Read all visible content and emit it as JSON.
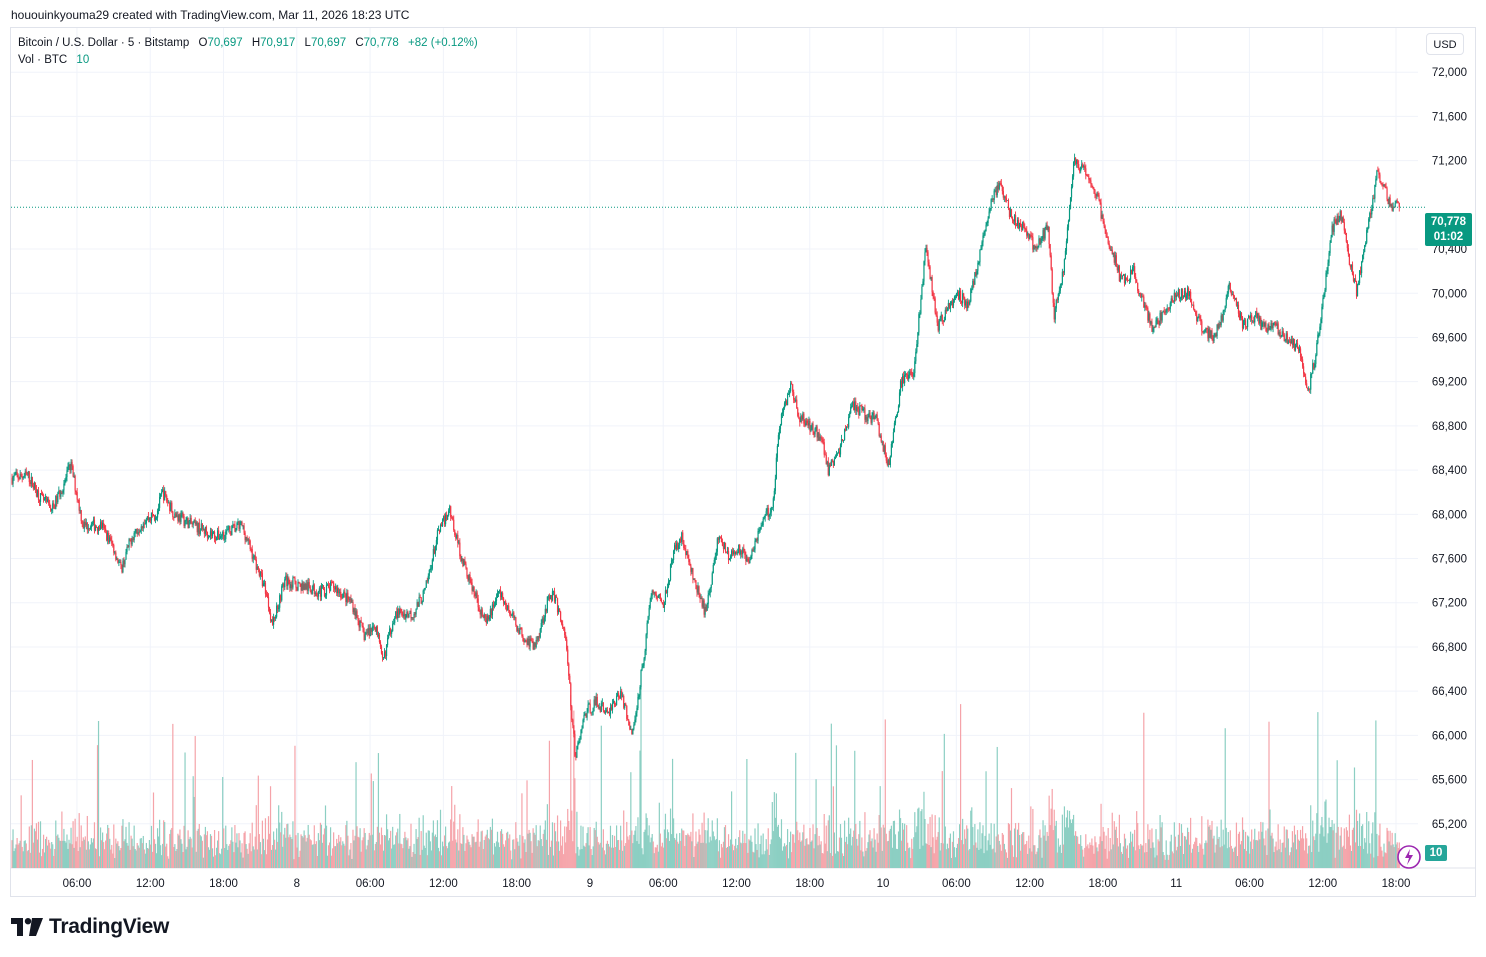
{
  "caption": "hououinkyouma29 created with TradingView.com, Mar 11, 2026 18:23 UTC",
  "legend": {
    "symbol": "Bitcoin / U.S. Dollar · 5 · Bitstamp",
    "o_label": "O",
    "o_value": "70,697",
    "h_label": "H",
    "h_value": "70,917",
    "l_label": "L",
    "l_value": "70,697",
    "c_label": "C",
    "c_value": "70,778",
    "change": "+82 (+0.12%)",
    "vol_label": "Vol · BTC",
    "vol_value": "10"
  },
  "currency": "USD",
  "last_price": {
    "price": "70,778",
    "countdown": "01:02"
  },
  "volume_badge": "10",
  "brand": "TradingView",
  "colors": {
    "up": "#089981",
    "down": "#f23645",
    "vol_up": "#8ccfc3",
    "vol_down": "#f5a3a9",
    "grid": "#f0f3fa",
    "axis_text": "#131722"
  },
  "chart_data": {
    "type": "candlestick",
    "title": "Bitcoin / U.S. Dollar · 5 · Bitstamp",
    "ylim": [
      64800,
      72400
    ],
    "y_ticks": [
      "72,000",
      "71,600",
      "71,200",
      "70,400",
      "70,000",
      "69,600",
      "69,200",
      "68,800",
      "68,400",
      "68,000",
      "67,600",
      "67,200",
      "66,800",
      "66,400",
      "66,000",
      "65,600",
      "65,200"
    ],
    "x_ticks": [
      "06:00",
      "12:00",
      "18:00",
      "8",
      "06:00",
      "12:00",
      "18:00",
      "9",
      "06:00",
      "12:00",
      "18:00",
      "10",
      "06:00",
      "12:00",
      "18:00",
      "11",
      "06:00",
      "12:00",
      "18:00"
    ],
    "x_tick_hours": [
      6,
      12,
      18,
      24,
      30,
      36,
      42,
      48,
      54,
      60,
      66,
      72,
      78,
      84,
      90,
      96,
      102,
      108,
      114
    ],
    "x_range_hours": [
      0.6,
      115.8
    ],
    "price_anchors": [
      [
        0.6,
        68330
      ],
      [
        2.0,
        68350
      ],
      [
        3.0,
        68150
      ],
      [
        4.0,
        68050
      ],
      [
        5.0,
        68300
      ],
      [
        5.5,
        68450
      ],
      [
        6.5,
        67900
      ],
      [
        8.0,
        67900
      ],
      [
        9.0,
        67700
      ],
      [
        9.6,
        67500
      ],
      [
        10.5,
        67800
      ],
      [
        11.5,
        67950
      ],
      [
        12.5,
        68000
      ],
      [
        13.0,
        68200
      ],
      [
        14.0,
        68000
      ],
      [
        15.5,
        67900
      ],
      [
        16.5,
        67850
      ],
      [
        17.5,
        67800
      ],
      [
        18.5,
        67850
      ],
      [
        19.5,
        67900
      ],
      [
        20.5,
        67600
      ],
      [
        21.5,
        67300
      ],
      [
        22.0,
        67000
      ],
      [
        23.0,
        67400
      ],
      [
        24.5,
        67350
      ],
      [
        26.0,
        67300
      ],
      [
        27.0,
        67350
      ],
      [
        28.5,
        67200
      ],
      [
        29.5,
        66900
      ],
      [
        30.5,
        67000
      ],
      [
        31.0,
        66650
      ],
      [
        32.0,
        67100
      ],
      [
        33.5,
        67100
      ],
      [
        34.5,
        67300
      ],
      [
        35.5,
        67800
      ],
      [
        36.5,
        68050
      ],
      [
        37.5,
        67600
      ],
      [
        38.5,
        67300
      ],
      [
        39.5,
        67000
      ],
      [
        40.5,
        67300
      ],
      [
        41.5,
        67100
      ],
      [
        42.5,
        66900
      ],
      [
        43.5,
        66800
      ],
      [
        44.5,
        67200
      ],
      [
        45.0,
        67300
      ],
      [
        46.0,
        66900
      ],
      [
        46.8,
        65800
      ],
      [
        47.6,
        66200
      ],
      [
        48.5,
        66300
      ],
      [
        49.5,
        66200
      ],
      [
        50.5,
        66400
      ],
      [
        51.5,
        66000
      ],
      [
        52.5,
        66800
      ],
      [
        53.0,
        67300
      ],
      [
        54.0,
        67200
      ],
      [
        55.0,
        67700
      ],
      [
        55.5,
        67800
      ],
      [
        56.5,
        67400
      ],
      [
        57.5,
        67100
      ],
      [
        58.5,
        67800
      ],
      [
        59.5,
        67600
      ],
      [
        60.0,
        67700
      ],
      [
        61.0,
        67600
      ],
      [
        62.0,
        67900
      ],
      [
        63.0,
        68100
      ],
      [
        63.5,
        68800
      ],
      [
        64.5,
        69200
      ],
      [
        65.0,
        68900
      ],
      [
        66.0,
        68800
      ],
      [
        67.0,
        68700
      ],
      [
        67.5,
        68400
      ],
      [
        68.5,
        68600
      ],
      [
        69.5,
        69000
      ],
      [
        70.5,
        68900
      ],
      [
        71.5,
        68850
      ],
      [
        72.0,
        68600
      ],
      [
        72.5,
        68450
      ],
      [
        73.5,
        69200
      ],
      [
        74.5,
        69300
      ],
      [
        75.5,
        70400
      ],
      [
        76.5,
        69700
      ],
      [
        77.5,
        69900
      ],
      [
        78.0,
        70000
      ],
      [
        79.0,
        69900
      ],
      [
        80.0,
        70400
      ],
      [
        80.8,
        70800
      ],
      [
        81.5,
        71000
      ],
      [
        82.5,
        70700
      ],
      [
        83.5,
        70600
      ],
      [
        84.5,
        70400
      ],
      [
        85.5,
        70600
      ],
      [
        86.0,
        69800
      ],
      [
        86.8,
        70200
      ],
      [
        87.6,
        71200
      ],
      [
        88.5,
        71100
      ],
      [
        89.5,
        70900
      ],
      [
        90.3,
        70500
      ],
      [
        91.0,
        70300
      ],
      [
        91.5,
        70100
      ],
      [
        92.5,
        70200
      ],
      [
        93.0,
        70000
      ],
      [
        94.0,
        69700
      ],
      [
        95.0,
        69800
      ],
      [
        96.0,
        70000
      ],
      [
        97.0,
        70000
      ],
      [
        98.0,
        69700
      ],
      [
        99.0,
        69600
      ],
      [
        99.8,
        69800
      ],
      [
        100.3,
        70100
      ],
      [
        101.0,
        69900
      ],
      [
        101.5,
        69700
      ],
      [
        102.5,
        69800
      ],
      [
        103.0,
        69700
      ],
      [
        104.0,
        69700
      ],
      [
        105.0,
        69600
      ],
      [
        106.0,
        69500
      ],
      [
        106.8,
        69100
      ],
      [
        107.5,
        69500
      ],
      [
        108.2,
        70100
      ],
      [
        108.8,
        70600
      ],
      [
        109.5,
        70700
      ],
      [
        110.2,
        70300
      ],
      [
        110.8,
        70000
      ],
      [
        111.5,
        70500
      ],
      [
        112.0,
        70800
      ],
      [
        112.5,
        71100
      ],
      [
        113.5,
        70800
      ],
      [
        114.3,
        70778
      ]
    ],
    "volume_ylim": [
      0,
      330
    ]
  }
}
